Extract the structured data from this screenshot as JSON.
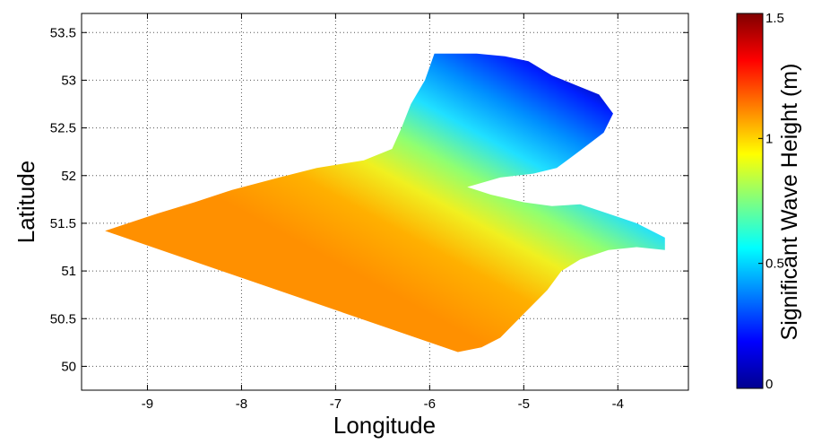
{
  "chart_data": {
    "type": "heatmap",
    "xlabel": "Longitude",
    "ylabel": "Latitude",
    "xlim": [
      -9.7,
      -3.25
    ],
    "ylim": [
      49.75,
      53.7
    ],
    "xticks": [
      -9,
      -8,
      -7,
      -6,
      -5,
      -4
    ],
    "yticks": [
      50,
      50.5,
      51,
      51.5,
      52,
      52.5,
      53,
      53.5
    ],
    "xtick_labels": [
      "-9",
      "-8",
      "-7",
      "-6",
      "-5",
      "-4"
    ],
    "ytick_labels": [
      "50",
      "50.5",
      "51",
      "51.5",
      "52",
      "52.5",
      "53",
      "53.5"
    ],
    "grid": true,
    "colorbar": {
      "label": "Significant Wave Height (m)",
      "range": [
        0,
        1.5
      ],
      "ticks": [
        0,
        0.5,
        1,
        1.5
      ],
      "tick_labels": [
        "0",
        "0.5",
        "1",
        "1.5"
      ],
      "colormap": "jet"
    },
    "field": {
      "polygon": [
        [
          -9.45,
          51.42
        ],
        [
          -8.9,
          51.6
        ],
        [
          -8.5,
          51.72
        ],
        [
          -8.1,
          51.85
        ],
        [
          -7.6,
          51.98
        ],
        [
          -7.2,
          52.08
        ],
        [
          -6.95,
          52.12
        ],
        [
          -6.7,
          52.16
        ],
        [
          -6.4,
          52.28
        ],
        [
          -6.3,
          52.5
        ],
        [
          -6.2,
          52.75
        ],
        [
          -6.05,
          53.0
        ],
        [
          -5.95,
          53.28
        ],
        [
          -5.5,
          53.28
        ],
        [
          -5.2,
          53.25
        ],
        [
          -4.95,
          53.2
        ],
        [
          -4.7,
          53.05
        ],
        [
          -4.45,
          52.95
        ],
        [
          -4.2,
          52.85
        ],
        [
          -4.05,
          52.65
        ],
        [
          -4.15,
          52.45
        ],
        [
          -4.35,
          52.3
        ],
        [
          -4.65,
          52.08
        ],
        [
          -4.9,
          52.02
        ],
        [
          -5.25,
          51.98
        ],
        [
          -5.6,
          51.88
        ],
        [
          -5.35,
          51.8
        ],
        [
          -5.0,
          51.72
        ],
        [
          -4.7,
          51.68
        ],
        [
          -4.4,
          51.7
        ],
        [
          -4.1,
          51.6
        ],
        [
          -3.8,
          51.5
        ],
        [
          -3.5,
          51.35
        ],
        [
          -3.5,
          51.22
        ],
        [
          -3.8,
          51.25
        ],
        [
          -4.1,
          51.22
        ],
        [
          -4.4,
          51.12
        ],
        [
          -4.6,
          51.0
        ],
        [
          -4.75,
          50.8
        ],
        [
          -5.0,
          50.55
        ],
        [
          -5.25,
          50.3
        ],
        [
          -5.45,
          50.2
        ],
        [
          -5.7,
          50.15
        ],
        [
          -9.45,
          51.42
        ]
      ],
      "direction_of_increase": "south-west",
      "min_value": 0.0,
      "max_value": 0.95
    }
  }
}
